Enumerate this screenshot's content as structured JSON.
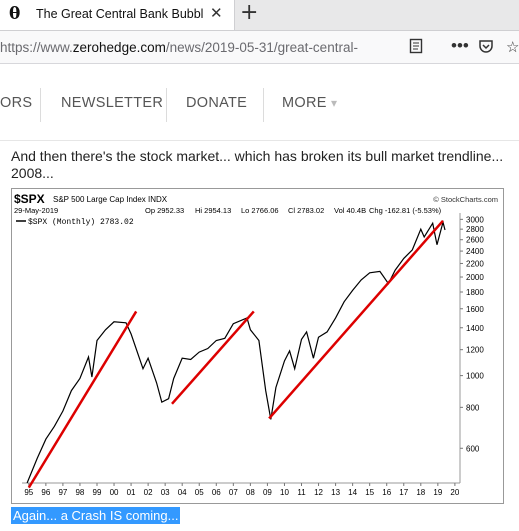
{
  "browser": {
    "tab_title": "The Great Central Bank Bubble",
    "tab_favicon": "zh-theta-icon",
    "url_prefix": "https://www.",
    "url_host": "zerohedge.com",
    "url_path": "/news/2019-05-31/great-central-"
  },
  "nav": {
    "items": [
      "ORS",
      "NEWSLETTER",
      "DONATE",
      "MORE"
    ],
    "more_caret": "▾"
  },
  "article": {
    "line1": "And then there's the stock market... which has broken its bull market trendline...",
    "line2": "2008...",
    "caption": "Again... a Crash IS coming..."
  },
  "chart_header": {
    "symbol": "$SPX",
    "name": "S&P 500 Large Cap Index INDX",
    "source": "© StockCharts.com",
    "date": "29-May-2019",
    "op": "Op 2952.33",
    "hi": "Hi 2954.13",
    "lo": "Lo 2766.06",
    "cl": "Cl 2783.02",
    "vol": "Vol 40.4B",
    "chg": "Chg -162.81 (-5.53%)",
    "legend": "$SPX (Monthly) 2783.02"
  },
  "chart_data": {
    "type": "line",
    "scale": "log",
    "x_ticks": [
      "95",
      "96",
      "97",
      "98",
      "99",
      "00",
      "01",
      "02",
      "03",
      "04",
      "05",
      "06",
      "07",
      "08",
      "09",
      "10",
      "11",
      "12",
      "13",
      "14",
      "15",
      "16",
      "17",
      "18",
      "19",
      "20"
    ],
    "y_ticks": [
      600,
      800,
      1000,
      1200,
      1400,
      1600,
      1800,
      2000,
      2200,
      2400,
      2600,
      2800,
      3000
    ],
    "ylim": [
      470,
      3050
    ],
    "series": [
      {
        "name": "$SPX (Monthly)",
        "color": "#000000",
        "x": [
          1994.9,
          1995.5,
          1996.0,
          1996.5,
          1997.0,
          1997.5,
          1998.0,
          1998.5,
          1998.7,
          1999.0,
          1999.5,
          2000.0,
          2000.7,
          2001.0,
          2001.7,
          2002.0,
          2002.5,
          2002.8,
          2003.2,
          2003.5,
          2004.0,
          2004.5,
          2005.0,
          2005.5,
          2006.0,
          2006.5,
          2007.0,
          2007.8,
          2008.0,
          2008.5,
          2008.9,
          2009.2,
          2009.5,
          2010.0,
          2010.3,
          2010.6,
          2011.0,
          2011.3,
          2011.7,
          2012.0,
          2012.5,
          2013.0,
          2013.5,
          2014.0,
          2014.5,
          2015.0,
          2015.6,
          2016.1,
          2016.5,
          2017.0,
          2017.5,
          2018.0,
          2018.2,
          2018.7,
          2018.95,
          2019.3,
          2019.42
        ],
        "y": [
          470,
          560,
          640,
          700,
          780,
          900,
          980,
          1140,
          990,
          1280,
          1380,
          1460,
          1450,
          1340,
          1050,
          1130,
          950,
          830,
          850,
          980,
          1130,
          1120,
          1180,
          1210,
          1280,
          1300,
          1440,
          1500,
          1380,
          1280,
          900,
          735,
          920,
          1110,
          1190,
          1050,
          1290,
          1360,
          1130,
          1310,
          1360,
          1500,
          1680,
          1820,
          1960,
          2060,
          2080,
          1910,
          2100,
          2280,
          2420,
          2800,
          2650,
          2920,
          2510,
          2940,
          2783
        ]
      }
    ],
    "trendlines": [
      {
        "color": "#dd0000",
        "from": [
          1995.0,
          455
        ],
        "to": [
          2001.3,
          1570
        ]
      },
      {
        "color": "#dd0000",
        "from": [
          2003.4,
          820
        ],
        "to": [
          2008.2,
          1570
        ]
      },
      {
        "color": "#dd0000",
        "from": [
          2009.1,
          740
        ],
        "to": [
          2019.3,
          2970
        ]
      }
    ]
  }
}
